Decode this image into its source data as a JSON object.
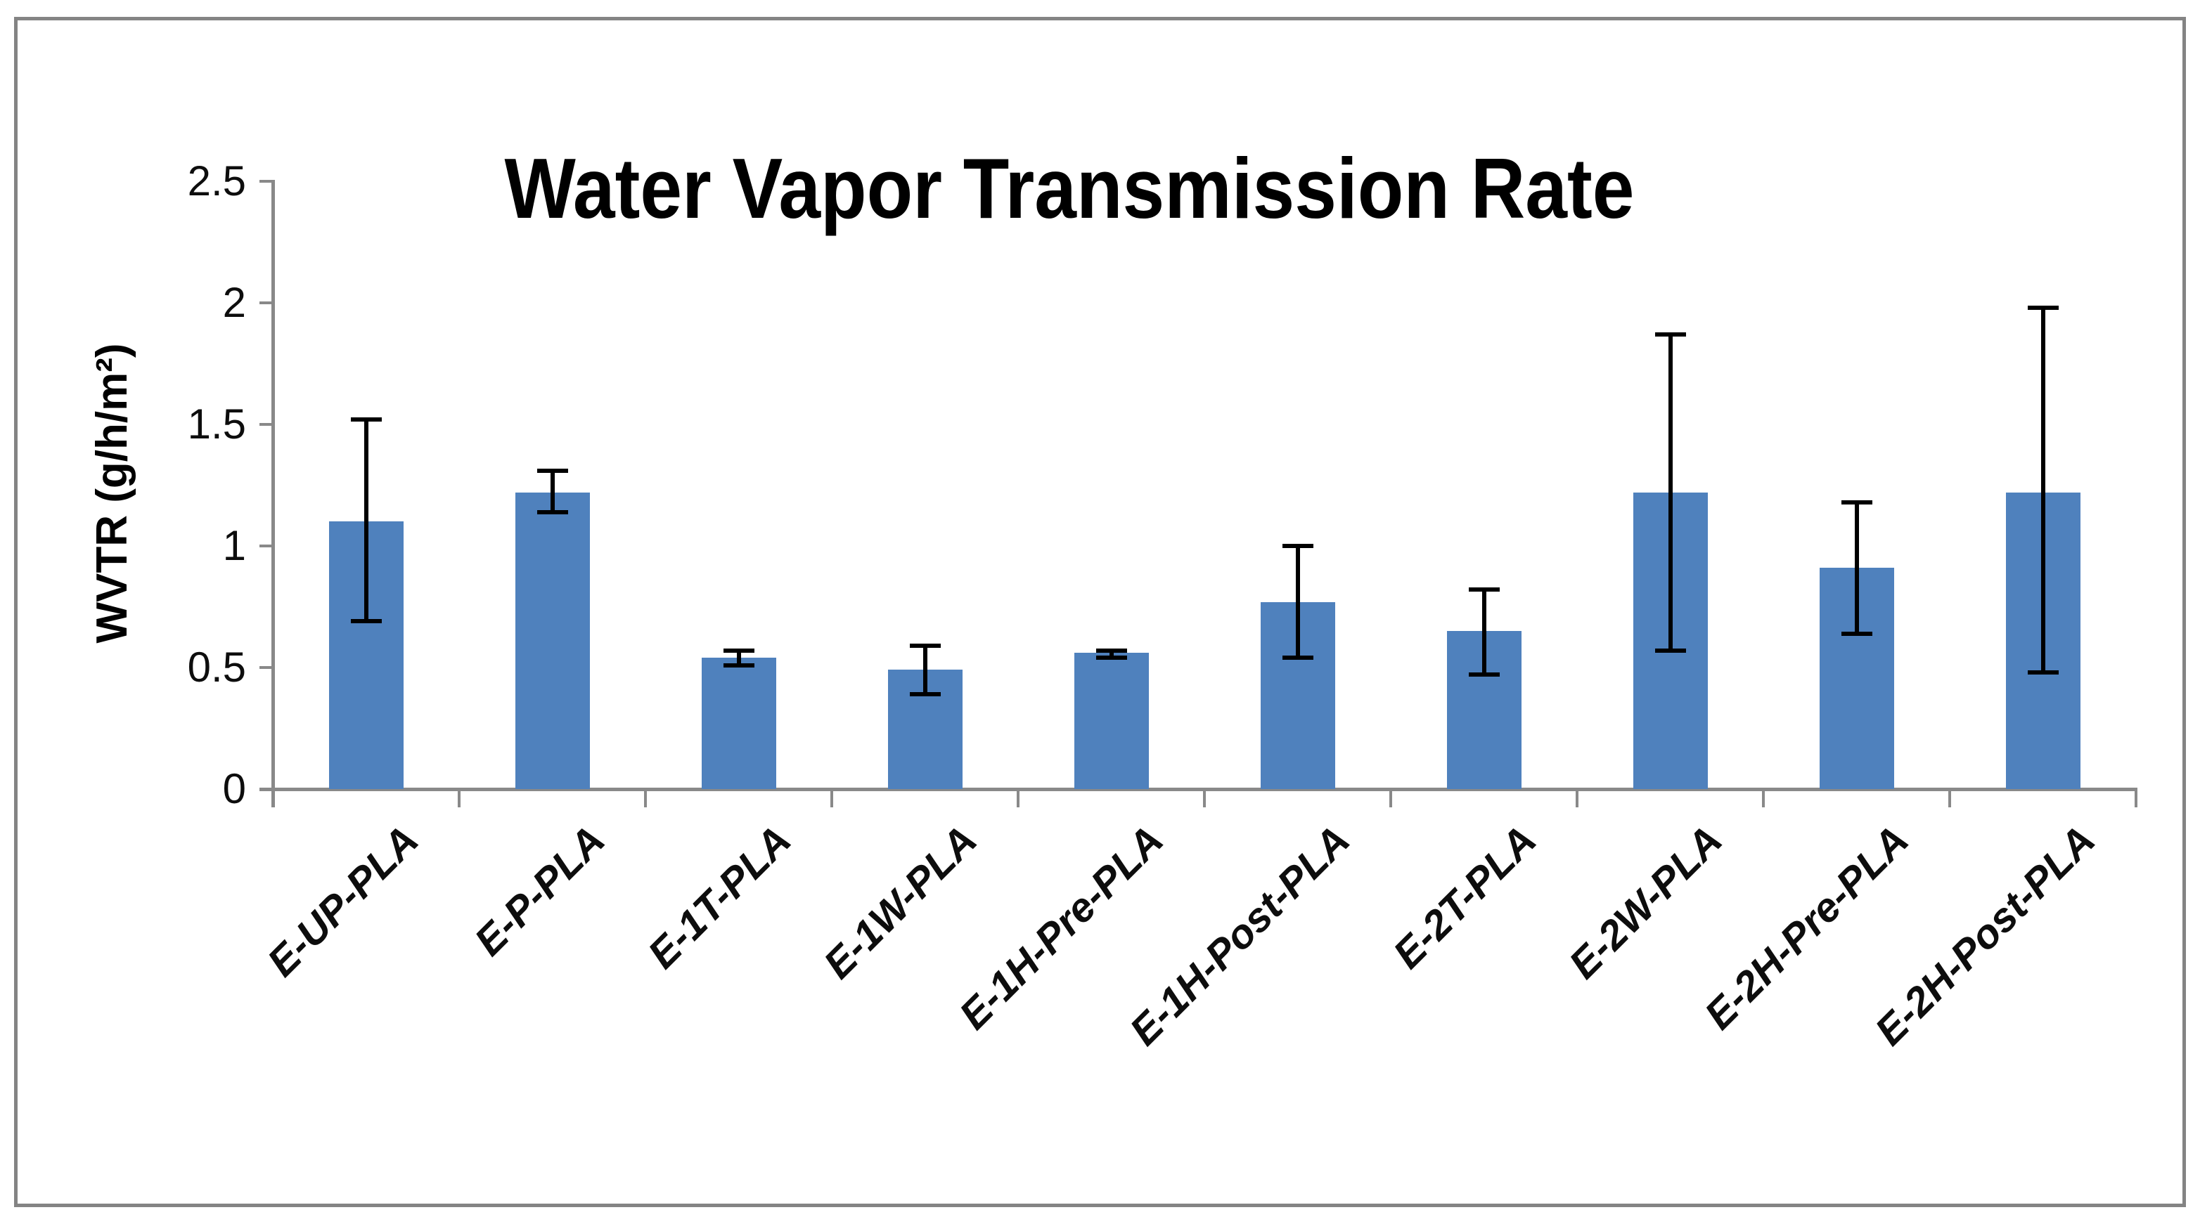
{
  "chart_data": {
    "type": "bar",
    "title": "Water Vapor Transmission Rate",
    "xlabel": "",
    "ylabel": "WVTR (g/h/m²)",
    "categories": [
      "E-UP-PLA",
      "E-P-PLA",
      "E-1T-PLA",
      "E-1W-PLA",
      "E-1H-Pre-PLA",
      "E-1H-Post-PLA",
      "E-2T-PLA",
      "E-2W-PLA",
      "E-2H-Pre-PLA",
      "E-2H-Post-PLA"
    ],
    "values": [
      1.1,
      1.22,
      0.54,
      0.49,
      0.56,
      0.77,
      0.65,
      1.22,
      0.91,
      1.22
    ],
    "error_low": [
      0.69,
      1.14,
      0.51,
      0.39,
      0.54,
      0.54,
      0.47,
      0.57,
      0.64,
      0.48
    ],
    "error_high": [
      1.52,
      1.31,
      0.57,
      0.59,
      0.57,
      1.0,
      0.82,
      1.87,
      1.18,
      1.98
    ],
    "ylim": [
      0,
      2.5
    ],
    "yticks": [
      0,
      0.5,
      1,
      1.5,
      2,
      2.5
    ],
    "grid": false,
    "legend": null,
    "bar_color": "#4f81bd",
    "axis_color": "#898989",
    "error_bar_color": "#000000",
    "frame_color": "#848484"
  }
}
